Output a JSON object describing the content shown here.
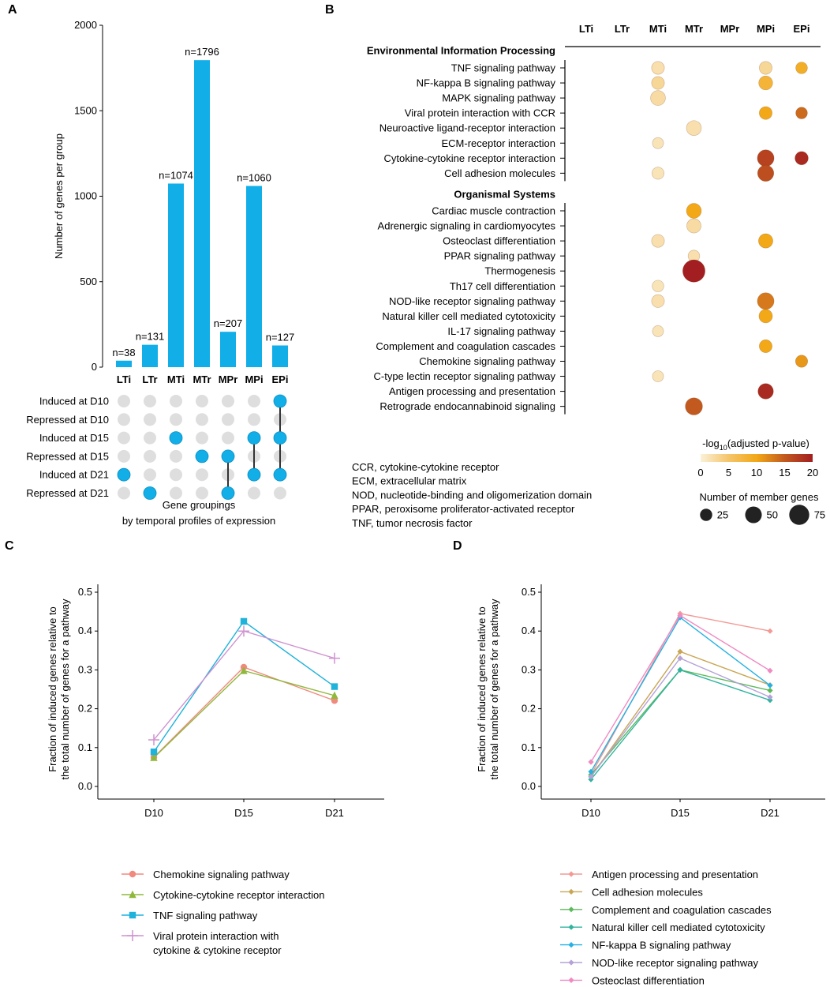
{
  "chart_data": [
    {
      "panel": "A",
      "type": "bar",
      "ylabel": "Number of genes per group",
      "ylim": [
        0,
        2000
      ],
      "yticks": [
        0,
        500,
        1000,
        1500,
        2000
      ],
      "categories": [
        "LTi",
        "LTr",
        "MTi",
        "MTr",
        "MPr",
        "MPi",
        "EPi"
      ],
      "values": [
        38,
        131,
        1074,
        1796,
        207,
        1060,
        127
      ],
      "data_labels": [
        "n=38",
        "n=131",
        "n=1074",
        "n=1796",
        "n=207",
        "n=1060",
        "n=127"
      ],
      "bar_color": "#12aee8",
      "matrix_rows": [
        "Induced at D10",
        "Repressed at D10",
        "Induced at D15",
        "Repressed at D15",
        "Induced at D21",
        "Repressed at D21"
      ],
      "matrix_membership": [
        [
          4
        ],
        [
          5
        ],
        [
          2
        ],
        [
          3
        ],
        [
          3,
          5
        ],
        [
          2,
          4
        ],
        [
          0,
          2,
          4
        ]
      ],
      "xlabel_lines": [
        "Gene groupings",
        "by temporal profiles of expression"
      ]
    },
    {
      "panel": "B",
      "type": "scatter",
      "columns": [
        "LTi",
        "LTr",
        "MTi",
        "MTr",
        "MPr",
        "MPi",
        "EPi"
      ],
      "sections": [
        {
          "title": "Environmental Information Processing",
          "rows": [
            {
              "label": "TNF signaling pathway",
              "points": [
                {
                  "col": 2,
                  "p": 2,
                  "n": 25
                },
                {
                  "col": 5,
                  "p": 3,
                  "n": 25
                },
                {
                  "col": 6,
                  "p": 9,
                  "n": 20
                }
              ]
            },
            {
              "label": "NF-kappa B signaling pathway",
              "points": [
                {
                  "col": 2,
                  "p": 3,
                  "n": 25
                },
                {
                  "col": 5,
                  "p": 8,
                  "n": 30
                }
              ]
            },
            {
              "label": "MAPK signaling pathway",
              "points": [
                {
                  "col": 2,
                  "p": 2.5,
                  "n": 35
                }
              ]
            },
            {
              "label": "Viral protein interaction with CCR",
              "points": [
                {
                  "col": 5,
                  "p": 10,
                  "n": 25
                },
                {
                  "col": 6,
                  "p": 14,
                  "n": 20
                }
              ]
            },
            {
              "label": "Neuroactive ligand-receptor interaction",
              "points": [
                {
                  "col": 3,
                  "p": 2,
                  "n": 35
                }
              ]
            },
            {
              "label": "ECM-receptor interaction",
              "points": [
                {
                  "col": 2,
                  "p": 1.5,
                  "n": 18
                }
              ]
            },
            {
              "label": "Cytokine-cytokine receptor interaction",
              "points": [
                {
                  "col": 5,
                  "p": 17,
                  "n": 45
                },
                {
                  "col": 6,
                  "p": 19,
                  "n": 27
                }
              ]
            },
            {
              "label": "Cell adhesion molecules",
              "points": [
                {
                  "col": 2,
                  "p": 1.5,
                  "n": 22
                },
                {
                  "col": 5,
                  "p": 16,
                  "n": 42
                }
              ]
            }
          ]
        },
        {
          "title": "Organismal Systems",
          "rows": [
            {
              "label": "Cardiac muscle contraction",
              "points": [
                {
                  "col": 3,
                  "p": 10,
                  "n": 35
                }
              ]
            },
            {
              "label": "Adrenergic signaling in cardiomyocytes",
              "points": [
                {
                  "col": 3,
                  "p": 2.5,
                  "n": 32
                }
              ]
            },
            {
              "label": "Osteoclast differentiation",
              "points": [
                {
                  "col": 2,
                  "p": 2,
                  "n": 25
                },
                {
                  "col": 5,
                  "p": 10,
                  "n": 32
                }
              ]
            },
            {
              "label": "PPAR signaling pathway",
              "points": [
                {
                  "col": 3,
                  "p": 2,
                  "n": 20
                }
              ]
            },
            {
              "label": "Thermogenesis",
              "points": [
                {
                  "col": 3,
                  "p": 20,
                  "n": 85
                }
              ]
            },
            {
              "label": "Th17 cell differentiation",
              "points": [
                {
                  "col": 2,
                  "p": 1.5,
                  "n": 20
                }
              ]
            },
            {
              "label": "NOD-like receptor signaling pathway",
              "points": [
                {
                  "col": 2,
                  "p": 2,
                  "n": 25
                },
                {
                  "col": 5,
                  "p": 13,
                  "n": 45
                }
              ]
            },
            {
              "label": "Natural killer cell mediated cytotoxicity",
              "points": [
                {
                  "col": 5,
                  "p": 10,
                  "n": 28
                }
              ]
            },
            {
              "label": "IL-17 signaling pathway",
              "points": [
                {
                  "col": 2,
                  "p": 1.5,
                  "n": 18
                }
              ]
            },
            {
              "label": "Complement and coagulation cascades",
              "points": [
                {
                  "col": 5,
                  "p": 10,
                  "n": 25
                }
              ]
            },
            {
              "label": "Chemokine signaling pathway",
              "points": [
                {
                  "col": 6,
                  "p": 11,
                  "n": 22
                }
              ]
            },
            {
              "label": "C-type lectin receptor signaling pathway",
              "points": [
                {
                  "col": 2,
                  "p": 1.5,
                  "n": 18
                }
              ]
            },
            {
              "label": "Antigen processing and presentation",
              "points": [
                {
                  "col": 5,
                  "p": 19,
                  "n": 38
                }
              ]
            },
            {
              "label": "Retrograde endocannabinoid signaling",
              "points": [
                {
                  "col": 3,
                  "p": 15,
                  "n": 48
                }
              ]
            }
          ]
        }
      ],
      "abbreviations": [
        "CCR, cytokine-cytokine receptor",
        "ECM, extracellular matrix",
        "NOD, nucleotide-binding and oligomerization domain",
        "PPAR, peroxisome proliferator-activated receptor",
        "TNF, tumor necrosis factor"
      ],
      "color_legend": {
        "title_prefix": "-log",
        "title_sub": "10",
        "title_suffix": "(adjusted p-value)",
        "range": [
          0,
          20
        ],
        "ticks": [
          0,
          5,
          10,
          15,
          20
        ],
        "colors": [
          "#fbf1d9",
          "#f5c56a",
          "#f2a817",
          "#c25a1f",
          "#a31e20"
        ]
      },
      "size_legend": {
        "title": "Number of member genes",
        "values": [
          25,
          50,
          75
        ]
      }
    },
    {
      "panel": "C",
      "type": "line",
      "ylabel_lines": [
        "Fraction of induced genes relative to",
        "the total number of genes for a pathway"
      ],
      "x": [
        "D10",
        "D15",
        "D21"
      ],
      "ylim": [
        0,
        0.5
      ],
      "yticks": [
        "0.0",
        "0.1",
        "0.2",
        "0.3",
        "0.4",
        "0.5"
      ],
      "series": [
        {
          "name": "Chemokine signaling pathway",
          "values": [
            0.075,
            0.307,
            0.221
          ],
          "color": "#f08a7e",
          "marker": "circle"
        },
        {
          "name": "Cytokine-cytokine receptor interaction",
          "values": [
            0.074,
            0.298,
            0.234
          ],
          "color": "#8fb83d",
          "marker": "triangle"
        },
        {
          "name": "TNF signaling pathway",
          "values": [
            0.089,
            0.425,
            0.257
          ],
          "color": "#1fb2da",
          "marker": "square"
        },
        {
          "name": "Viral protein interaction with cytokine & cytokine receptor",
          "name_lines": [
            "Viral protein interaction with",
            "cytokine & cytokine receptor"
          ],
          "values": [
            0.12,
            0.4,
            0.33
          ],
          "color": "#cf92d0",
          "marker": "plus"
        }
      ]
    },
    {
      "panel": "D",
      "type": "line",
      "ylabel_lines": [
        "Fraction of induced genes relative to",
        "the total number of genes for a pathway"
      ],
      "x": [
        "D10",
        "D15",
        "D21"
      ],
      "ylim": [
        0,
        0.5
      ],
      "yticks": [
        "0.0",
        "0.1",
        "0.2",
        "0.3",
        "0.4",
        "0.5"
      ],
      "series": [
        {
          "name": "Antigen processing and presentation",
          "values": [
            0.03,
            0.445,
            0.4
          ],
          "color": "#f29a95",
          "marker": "diamond"
        },
        {
          "name": "Cell adhesion molecules",
          "values": [
            0.025,
            0.347,
            0.261
          ],
          "color": "#c9a653",
          "marker": "diamond"
        },
        {
          "name": "Complement and coagulation cascades",
          "values": [
            0.03,
            0.3,
            0.247
          ],
          "color": "#5cba5c",
          "marker": "diamond"
        },
        {
          "name": "Natural killer cell mediated cytotoxicity",
          "values": [
            0.018,
            0.3,
            0.222
          ],
          "color": "#33b39f",
          "marker": "diamond"
        },
        {
          "name": "NF-kappa B signaling pathway",
          "values": [
            0.038,
            0.435,
            0.26
          ],
          "color": "#25b1e3",
          "marker": "diamond"
        },
        {
          "name": "NOD-like receptor signaling pathway",
          "values": [
            0.025,
            0.33,
            0.23
          ],
          "color": "#b4a2d9",
          "marker": "diamond"
        },
        {
          "name": "Osteoclast differentiation",
          "values": [
            0.063,
            0.44,
            0.298
          ],
          "color": "#ef8ac3",
          "marker": "diamond"
        }
      ]
    }
  ]
}
